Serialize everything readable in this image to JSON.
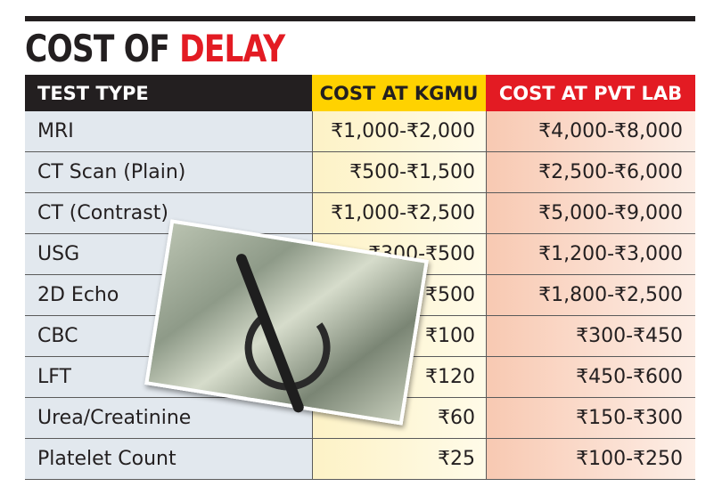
{
  "header": {
    "title_part1": "COST OF",
    "title_part2": "DELAY"
  },
  "table": {
    "columns": [
      "TEST TYPE",
      "COST AT KGMU",
      "COST AT PVT LAB"
    ],
    "rows": [
      [
        "MRI",
        "₹1,000-₹2,000",
        "₹4,000-₹8,000"
      ],
      [
        "CT Scan (Plain)",
        "₹500-₹1,500",
        "₹2,500-₹6,000"
      ],
      [
        "CT (Contrast)",
        "₹1,000-₹2,500",
        "₹5,000-₹9,000"
      ],
      [
        "USG",
        "₹300-₹500",
        "₹1,200-₹3,000"
      ],
      [
        "2D Echo",
        "₹500",
        "₹1,800-₹2,500"
      ],
      [
        "CBC",
        "₹100",
        "₹300-₹450"
      ],
      [
        "LFT",
        "₹120",
        "₹450-₹600"
      ],
      [
        "Urea/Creatinine",
        "₹60",
        "₹150-₹300"
      ],
      [
        "Platelet Count",
        "₹25",
        "₹100-₹250"
      ]
    ]
  }
}
